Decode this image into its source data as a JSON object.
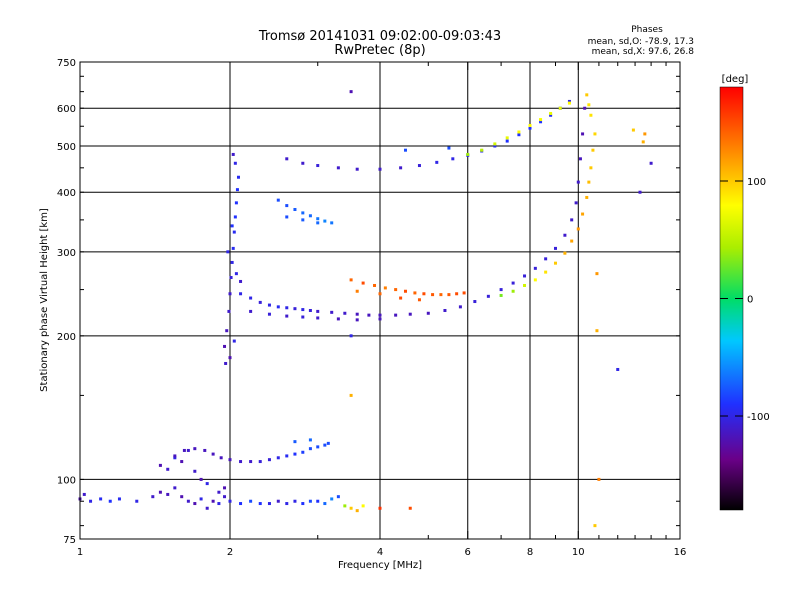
{
  "chart_data": {
    "type": "scatter",
    "title": "Tromsø 20141031 09:02:00-09:03:43",
    "subtitle": "RwPretec (8p)",
    "xlabel": "Frequency [MHz]",
    "ylabel": "Stationary phase Virtual Height [km]",
    "x_scale": "log",
    "y_scale": "log",
    "xlim": [
      1,
      16
    ],
    "ylim": [
      75,
      750
    ],
    "x_ticks": [
      1,
      2,
      4,
      6,
      8,
      10,
      16
    ],
    "x_tick_labels": [
      "1",
      "2",
      "4",
      "6",
      "8",
      "10",
      "16"
    ],
    "y_ticks": [
      75,
      100,
      200,
      300,
      400,
      500,
      600,
      750
    ],
    "y_tick_labels": [
      "75",
      "100",
      "200",
      "300",
      "400",
      "500",
      "600",
      "750"
    ],
    "grid": true,
    "legend": {
      "title": "Phases",
      "lines": [
        "mean, sd,O: -78.9, 17.3",
        "mean, sd,X:  97.6, 26.8"
      ]
    },
    "colorbar": {
      "label": "[deg]",
      "range": [
        -180,
        180
      ],
      "ticks": [
        100,
        0,
        -100
      ],
      "tick_labels": [
        "100",
        "0",
        "-100"
      ]
    },
    "series": [
      {
        "points": [
          [
            1.0,
            91,
            -120
          ],
          [
            1.02,
            93,
            -110
          ],
          [
            1.05,
            90,
            -100
          ],
          [
            1.1,
            91,
            -95
          ],
          [
            1.15,
            90,
            -90
          ],
          [
            1.2,
            91,
            -95
          ],
          [
            1.3,
            90,
            -100
          ],
          [
            1.4,
            92,
            -110
          ],
          [
            1.45,
            94,
            -120
          ],
          [
            1.5,
            93,
            -115
          ],
          [
            1.55,
            96,
            -110
          ],
          [
            1.6,
            92,
            -120
          ],
          [
            1.65,
            90,
            -110
          ],
          [
            1.7,
            89,
            -120
          ],
          [
            1.75,
            91,
            -100
          ],
          [
            1.8,
            87,
            -110
          ],
          [
            1.85,
            90,
            -120
          ],
          [
            1.9,
            89,
            -100
          ],
          [
            1.95,
            92,
            -110
          ],
          [
            2.0,
            90,
            -100
          ],
          [
            2.1,
            89,
            -90
          ],
          [
            2.2,
            90,
            -80
          ],
          [
            2.3,
            89,
            -90
          ],
          [
            2.4,
            89,
            -100
          ],
          [
            2.5,
            90,
            -110
          ],
          [
            2.6,
            89,
            -100
          ],
          [
            2.7,
            90,
            -100
          ],
          [
            2.8,
            89,
            -90
          ],
          [
            2.9,
            90,
            -80
          ],
          [
            3.0,
            90,
            -90
          ],
          [
            3.1,
            89,
            -70
          ],
          [
            3.2,
            91,
            -60
          ],
          [
            3.3,
            92,
            -80
          ],
          [
            3.4,
            88,
            40
          ],
          [
            3.5,
            87,
            100
          ],
          [
            3.6,
            86,
            110
          ],
          [
            3.7,
            88,
            80
          ],
          [
            4.0,
            87,
            160
          ],
          [
            4.6,
            87,
            150
          ]
        ]
      },
      {
        "points": [
          [
            1.45,
            107,
            -120
          ],
          [
            1.5,
            105,
            -110
          ],
          [
            1.55,
            111,
            -100
          ],
          [
            1.6,
            109,
            -120
          ],
          [
            1.65,
            115,
            -110
          ],
          [
            1.7,
            104,
            -110
          ],
          [
            1.75,
            100,
            -120
          ],
          [
            1.8,
            98,
            -100
          ],
          [
            1.9,
            94,
            -110
          ],
          [
            1.95,
            96,
            -120
          ]
        ]
      },
      {
        "points": [
          [
            1.55,
            112,
            -115
          ],
          [
            1.62,
            115,
            -115
          ],
          [
            1.7,
            116,
            -115
          ],
          [
            1.78,
            115,
            -115
          ],
          [
            1.85,
            113,
            -115
          ],
          [
            1.92,
            111,
            -115
          ],
          [
            2.0,
            110,
            -115
          ],
          [
            2.1,
            109,
            -110
          ],
          [
            2.2,
            109,
            -110
          ],
          [
            2.3,
            109,
            -105
          ],
          [
            2.4,
            110,
            -105
          ],
          [
            2.5,
            111,
            -100
          ],
          [
            2.6,
            112,
            -95
          ],
          [
            2.7,
            113,
            -90
          ],
          [
            2.8,
            114,
            -85
          ],
          [
            2.9,
            116,
            -80
          ],
          [
            3.0,
            117,
            -80
          ],
          [
            3.1,
            118,
            -80
          ],
          [
            3.15,
            119,
            -80
          ],
          [
            2.9,
            121,
            -70
          ],
          [
            2.7,
            120,
            -75
          ]
        ]
      },
      {
        "points": [
          [
            1.95,
            190,
            -120
          ],
          [
            1.97,
            205,
            -115
          ],
          [
            1.99,
            225,
            -110
          ],
          [
            2.0,
            245,
            -110
          ],
          [
            2.01,
            265,
            -105
          ],
          [
            2.02,
            285,
            -100
          ],
          [
            2.03,
            305,
            -95
          ],
          [
            2.04,
            330,
            -95
          ],
          [
            2.05,
            355,
            -90
          ],
          [
            2.06,
            380,
            -90
          ],
          [
            2.07,
            405,
            -90
          ],
          [
            2.08,
            430,
            -95
          ],
          [
            2.05,
            460,
            -100
          ],
          [
            2.03,
            480,
            -110
          ],
          [
            1.98,
            300,
            -100
          ],
          [
            2.02,
            340,
            -90
          ],
          [
            2.06,
            270,
            -100
          ],
          [
            2.1,
            260,
            -110
          ],
          [
            2.0,
            180,
            -120
          ],
          [
            1.96,
            175,
            -110
          ],
          [
            2.04,
            195,
            -100
          ]
        ]
      },
      {
        "points": [
          [
            2.1,
            245,
            -100
          ],
          [
            2.2,
            240,
            -100
          ],
          [
            2.3,
            235,
            -105
          ],
          [
            2.4,
            232,
            -100
          ],
          [
            2.5,
            230,
            -95
          ],
          [
            2.6,
            229,
            -100
          ],
          [
            2.7,
            228,
            -105
          ],
          [
            2.8,
            227,
            -100
          ],
          [
            2.9,
            226,
            -105
          ],
          [
            3.0,
            225,
            -110
          ],
          [
            3.2,
            224,
            -110
          ],
          [
            3.4,
            223,
            -110
          ],
          [
            3.6,
            222,
            -115
          ],
          [
            3.8,
            221,
            -115
          ],
          [
            4.0,
            221,
            -115
          ],
          [
            4.3,
            221,
            -115
          ],
          [
            4.6,
            222,
            -115
          ],
          [
            5.0,
            223,
            -115
          ],
          [
            5.4,
            226,
            -110
          ],
          [
            5.8,
            230,
            -110
          ],
          [
            6.2,
            236,
            -105
          ],
          [
            6.6,
            242,
            -105
          ],
          [
            7.0,
            250,
            -105
          ],
          [
            7.4,
            258,
            -105
          ],
          [
            7.8,
            267,
            -105
          ],
          [
            8.2,
            277,
            -105
          ],
          [
            8.6,
            290,
            -105
          ],
          [
            9.0,
            305,
            -105
          ],
          [
            9.4,
            325,
            -110
          ],
          [
            9.7,
            350,
            -110
          ],
          [
            9.9,
            380,
            -110
          ],
          [
            10.0,
            420,
            -110
          ],
          [
            10.1,
            470,
            -115
          ],
          [
            10.2,
            530,
            -120
          ],
          [
            10.3,
            600,
            -120
          ]
        ]
      },
      {
        "points": [
          [
            2.2,
            225,
            -110
          ],
          [
            2.4,
            222,
            -105
          ],
          [
            2.6,
            220,
            -110
          ],
          [
            2.8,
            219,
            -105
          ],
          [
            3.0,
            218,
            -110
          ],
          [
            3.3,
            217,
            -115
          ],
          [
            3.6,
            216,
            -115
          ],
          [
            4.0,
            217,
            -115
          ]
        ]
      },
      {
        "points": [
          [
            3.5,
            262,
            140
          ],
          [
            3.7,
            258,
            150
          ],
          [
            3.9,
            255,
            140
          ],
          [
            4.1,
            252,
            130
          ],
          [
            4.3,
            250,
            140
          ],
          [
            4.5,
            248,
            150
          ],
          [
            4.7,
            246,
            140
          ],
          [
            4.9,
            245,
            150
          ],
          [
            5.1,
            244,
            145
          ],
          [
            5.3,
            244,
            140
          ],
          [
            5.5,
            244,
            145
          ],
          [
            5.7,
            245,
            150
          ],
          [
            5.9,
            246,
            150
          ],
          [
            3.6,
            248,
            130
          ],
          [
            4.0,
            245,
            140
          ],
          [
            4.4,
            240,
            150
          ],
          [
            4.8,
            238,
            145
          ]
        ]
      },
      {
        "points": [
          [
            7.0,
            243,
            30
          ],
          [
            7.4,
            248,
            40
          ],
          [
            7.8,
            255,
            60
          ],
          [
            8.2,
            262,
            80
          ],
          [
            8.6,
            272,
            90
          ],
          [
            9.0,
            284,
            100
          ],
          [
            9.4,
            298,
            110
          ],
          [
            9.7,
            316,
            115
          ],
          [
            10.0,
            335,
            120
          ],
          [
            10.2,
            360,
            115
          ],
          [
            10.4,
            390,
            110
          ],
          [
            10.5,
            420,
            105
          ],
          [
            10.6,
            450,
            100
          ],
          [
            10.7,
            490,
            100
          ],
          [
            10.8,
            530,
            95
          ],
          [
            10.6,
            580,
            90
          ],
          [
            10.5,
            610,
            90
          ],
          [
            10.4,
            640,
            100
          ],
          [
            10.9,
            270,
            120
          ],
          [
            10.9,
            205,
            110
          ],
          [
            10.8,
            80,
            100
          ]
        ]
      },
      {
        "points": [
          [
            2.6,
            470,
            -110
          ],
          [
            2.8,
            460,
            -110
          ],
          [
            3.0,
            455,
            -105
          ],
          [
            3.3,
            450,
            -110
          ],
          [
            3.6,
            447,
            -110
          ],
          [
            4.0,
            447,
            -110
          ],
          [
            4.4,
            450,
            -110
          ],
          [
            4.8,
            455,
            -105
          ],
          [
            5.2,
            462,
            -100
          ],
          [
            5.6,
            470,
            -100
          ],
          [
            6.0,
            478,
            -95
          ],
          [
            6.4,
            488,
            -95
          ],
          [
            6.8,
            500,
            -95
          ],
          [
            7.2,
            512,
            -90
          ],
          [
            7.6,
            528,
            -90
          ],
          [
            8.0,
            545,
            -90
          ],
          [
            8.4,
            562,
            -90
          ],
          [
            8.8,
            580,
            -95
          ],
          [
            9.2,
            600,
            -95
          ],
          [
            9.6,
            620,
            -100
          ],
          [
            5.5,
            495,
            -80
          ],
          [
            4.5,
            490,
            -80
          ]
        ]
      },
      {
        "points": [
          [
            6.0,
            480,
            40
          ],
          [
            6.4,
            490,
            50
          ],
          [
            6.8,
            505,
            60
          ],
          [
            7.2,
            520,
            70
          ],
          [
            7.6,
            535,
            80
          ],
          [
            8.0,
            552,
            80
          ],
          [
            8.4,
            568,
            75
          ],
          [
            8.8,
            585,
            70
          ],
          [
            9.2,
            600,
            70
          ],
          [
            9.6,
            615,
            80
          ]
        ]
      },
      {
        "points": [
          [
            2.5,
            385,
            -80
          ],
          [
            2.6,
            375,
            -80
          ],
          [
            2.7,
            368,
            -75
          ],
          [
            2.8,
            362,
            -70
          ],
          [
            2.9,
            357,
            -70
          ],
          [
            3.0,
            352,
            -65
          ],
          [
            3.1,
            348,
            -60
          ],
          [
            3.2,
            345,
            -65
          ],
          [
            2.6,
            355,
            -80
          ],
          [
            2.8,
            350,
            -75
          ],
          [
            3.0,
            345,
            -70
          ]
        ]
      },
      {
        "points": [
          [
            3.5,
            650,
            -120
          ],
          [
            13.3,
            400,
            -110
          ],
          [
            12.0,
            170,
            -100
          ],
          [
            14.0,
            460,
            -110
          ],
          [
            13.6,
            530,
            120
          ],
          [
            13.5,
            510,
            110
          ],
          [
            12.9,
            540,
            100
          ],
          [
            11.0,
            100,
            130
          ],
          [
            3.5,
            150,
            110
          ],
          [
            3.5,
            200,
            -100
          ]
        ]
      }
    ]
  }
}
